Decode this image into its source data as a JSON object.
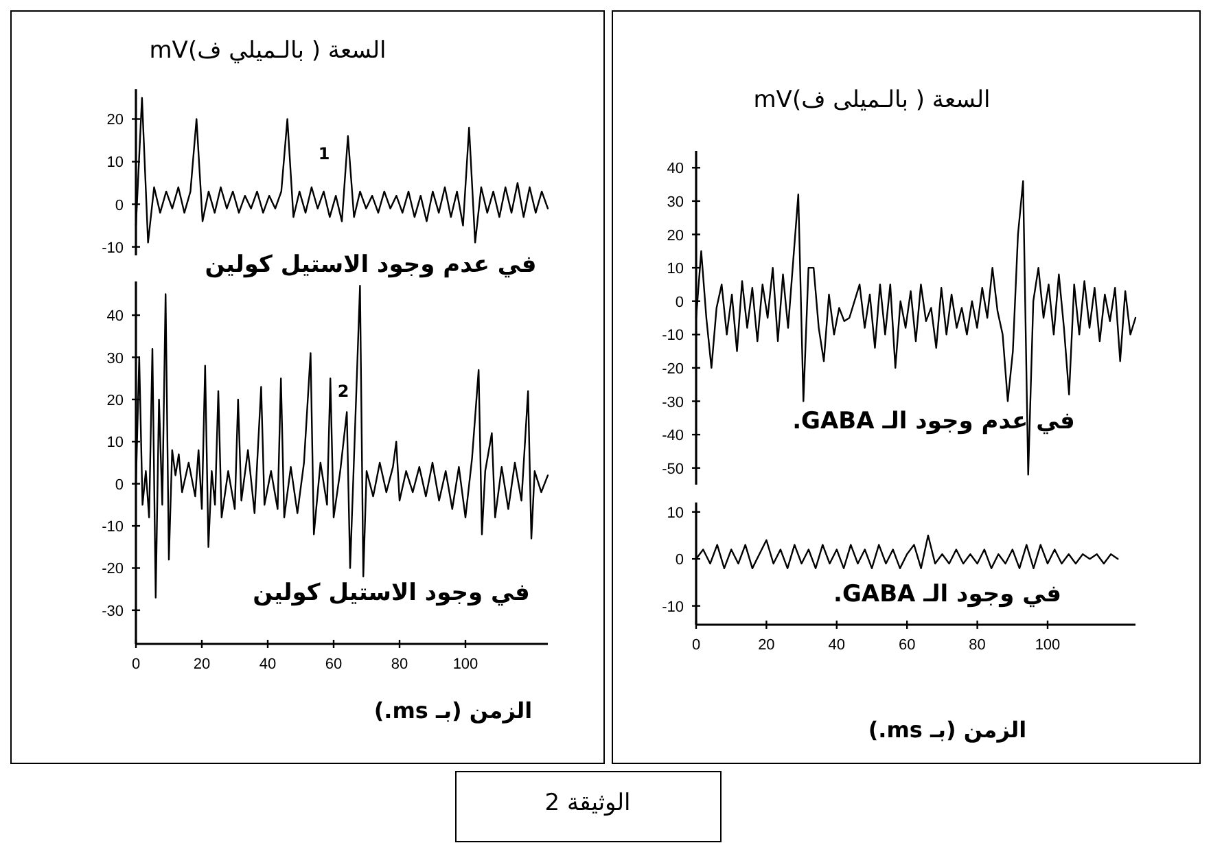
{
  "chart_data": [
    {
      "type": "line",
      "ylabel": "السعة ( بالـميلي ف)mV",
      "ylim": [
        -12,
        27
      ],
      "yticks": [
        20,
        10,
        0,
        -10
      ],
      "tick_labels": "y",
      "annotations": [
        "1",
        "في عدم وجود الاستيل كولين"
      ],
      "categories": [
        null,
        null,
        null,
        null,
        null,
        null,
        null,
        null,
        null,
        null,
        null,
        null,
        null,
        null,
        null,
        null,
        null,
        null,
        null,
        null,
        null,
        null,
        null,
        null,
        null,
        null,
        null,
        null,
        null,
        null,
        null,
        null,
        null,
        null,
        null,
        null,
        null,
        null,
        null,
        null,
        null,
        null,
        null,
        null,
        null,
        null,
        null,
        null,
        null,
        null,
        null,
        null,
        null,
        null,
        null,
        null,
        null,
        null,
        null,
        null,
        null,
        null,
        null,
        null,
        null,
        null,
        null,
        null,
        null
      ],
      "series": [
        {
          "color": "#000000",
          "values": [
            -5,
            25,
            -9,
            4,
            -2,
            3,
            -1,
            4,
            -2,
            3,
            20,
            -4,
            3,
            -2,
            4,
            -1,
            3,
            -2,
            2,
            -1,
            3,
            -2,
            2,
            -1,
            3,
            20,
            -3,
            3,
            -2,
            4,
            -1,
            3,
            -3,
            2,
            -4,
            16,
            -3,
            3,
            -1,
            2,
            -2,
            3,
            -1,
            2,
            -2,
            3,
            -3,
            2,
            -4,
            3,
            -2,
            4,
            -3,
            3,
            -5,
            18,
            -9,
            4,
            -2,
            3,
            -3,
            4,
            -2,
            5,
            -3,
            4,
            -2,
            3,
            -1
          ]
        }
      ]
    },
    {
      "type": "line",
      "xlabel": "الزمن (بـ ms.)",
      "xlim": [
        0,
        125
      ],
      "ylim": [
        -38,
        48
      ],
      "xticks": [
        0,
        20,
        40,
        60,
        80,
        100
      ],
      "yticks": [
        40,
        30,
        20,
        10,
        0,
        -10,
        -20,
        -30
      ],
      "annotations": [
        "2",
        "في وجود الاستيل كولين"
      ],
      "series": [
        {
          "color": "#000000",
          "x": [
            0,
            1,
            2,
            3,
            4,
            5,
            6,
            7,
            8,
            9,
            10,
            11,
            12,
            13,
            14,
            16,
            18,
            19,
            20,
            21,
            22,
            23,
            24,
            25,
            26,
            28,
            30,
            31,
            32,
            34,
            36,
            38,
            39,
            41,
            43,
            44,
            45,
            47,
            49,
            51,
            53,
            54,
            56,
            58,
            59,
            60,
            62,
            64,
            65,
            66,
            68,
            69,
            70,
            72,
            74,
            76,
            78,
            79,
            80,
            82,
            84,
            86,
            88,
            90,
            92,
            94,
            96,
            98,
            100,
            102,
            104,
            105,
            106,
            108,
            109,
            111,
            113,
            115,
            117,
            119,
            120,
            121,
            123,
            125
          ],
          "values": [
            0,
            30,
            -5,
            3,
            -8,
            32,
            -27,
            20,
            -5,
            45,
            -18,
            8,
            2,
            7,
            -2,
            5,
            -3,
            8,
            -6,
            28,
            -15,
            3,
            -5,
            22,
            -8,
            3,
            -6,
            20,
            -4,
            8,
            -7,
            23,
            -5,
            3,
            -6,
            25,
            -8,
            4,
            -7,
            5,
            31,
            -12,
            5,
            -5,
            25,
            -8,
            3,
            17,
            -20,
            2,
            47,
            -22,
            3,
            -3,
            5,
            -2,
            4,
            10,
            -4,
            3,
            -2,
            4,
            -3,
            5,
            -4,
            3,
            -6,
            4,
            -8,
            6,
            27,
            -12,
            3,
            12,
            -8,
            4,
            -6,
            5,
            -4,
            22,
            -13,
            3,
            -2,
            2
          ]
        }
      ]
    },
    {
      "type": "line",
      "ylabel": "السعة ( بالـميلى ف)mV",
      "ylim": [
        -55,
        45
      ],
      "yticks": [
        40,
        30,
        20,
        10,
        0,
        -10,
        -20,
        -30,
        -40,
        -50
      ],
      "tick_labels": "y",
      "annotations": [
        "في عدم وجود الـ GABA."
      ],
      "categories": [
        null,
        null,
        null,
        null,
        null,
        null,
        null,
        null,
        null,
        null,
        null,
        null,
        null,
        null,
        null,
        null,
        null,
        null,
        null,
        null,
        null,
        null,
        null,
        null,
        null,
        null,
        null,
        null,
        null,
        null,
        null,
        null,
        null,
        null,
        null,
        null,
        null,
        null,
        null,
        null,
        null,
        null,
        null,
        null,
        null,
        null,
        null,
        null,
        null,
        null,
        null,
        null,
        null,
        null,
        null,
        null,
        null,
        null,
        null,
        null,
        null,
        null,
        null,
        null,
        null,
        null,
        null,
        null,
        null,
        null,
        null,
        null,
        null,
        null,
        null,
        null,
        null,
        null,
        null,
        null,
        null,
        null,
        null,
        null,
        null,
        null,
        null
      ],
      "series": [
        {
          "color": "#000000",
          "values": [
            -5,
            15,
            -5,
            -20,
            -2,
            5,
            -10,
            2,
            -15,
            6,
            -8,
            4,
            -12,
            5,
            -5,
            10,
            -12,
            8,
            -8,
            12,
            32,
            -30,
            10,
            10,
            -8,
            -18,
            2,
            -10,
            -2,
            -6,
            -5,
            0,
            5,
            -8,
            2,
            -14,
            5,
            -10,
            5,
            -20,
            0,
            -8,
            3,
            -12,
            5,
            -6,
            -2,
            -14,
            4,
            -10,
            2,
            -8,
            -2,
            -10,
            0,
            -8,
            4,
            -5,
            10,
            -3,
            -10,
            -30,
            -15,
            20,
            36,
            -52,
            0,
            10,
            -5,
            5,
            -10,
            8,
            -8,
            -28,
            5,
            -10,
            6,
            -8,
            4,
            -12,
            2,
            -6,
            4,
            -18,
            3,
            -10,
            -5
          ]
        }
      ]
    },
    {
      "type": "line",
      "xlabel": "الزمن (بـ ms.)",
      "xlim": [
        0,
        125
      ],
      "ylim": [
        -14,
        12
      ],
      "xticks": [
        0,
        20,
        40,
        60,
        80,
        100
      ],
      "yticks": [
        10,
        0,
        -10
      ],
      "annotations": [
        "في وجود الـ GABA.",
        "الوثيقة 2"
      ],
      "series": [
        {
          "color": "#000000",
          "x": [
            0,
            2,
            4,
            6,
            8,
            10,
            12,
            14,
            16,
            18,
            20,
            22,
            24,
            26,
            28,
            30,
            32,
            34,
            36,
            38,
            40,
            42,
            44,
            46,
            48,
            50,
            52,
            54,
            56,
            58,
            60,
            62,
            64,
            66,
            68,
            70,
            72,
            74,
            76,
            78,
            80,
            82,
            84,
            86,
            88,
            90,
            92,
            94,
            96,
            98,
            100,
            102,
            104,
            106,
            108,
            110,
            112,
            114,
            116,
            118,
            120
          ],
          "values": [
            0,
            2,
            -1,
            3,
            -2,
            2,
            -1,
            3,
            -2,
            1,
            4,
            -1,
            2,
            -2,
            3,
            -1,
            2,
            -2,
            3,
            -1,
            2,
            -2,
            3,
            -1,
            2,
            -2,
            3,
            -1,
            2,
            -2,
            1,
            3,
            -2,
            5,
            -1,
            1,
            -1,
            2,
            -1,
            1,
            -1,
            2,
            -2,
            1,
            -1,
            2,
            -2,
            3,
            -2,
            3,
            -1,
            2,
            -1,
            1,
            -1,
            1,
            0,
            1,
            -1,
            1,
            0
          ]
        }
      ]
    }
  ]
}
